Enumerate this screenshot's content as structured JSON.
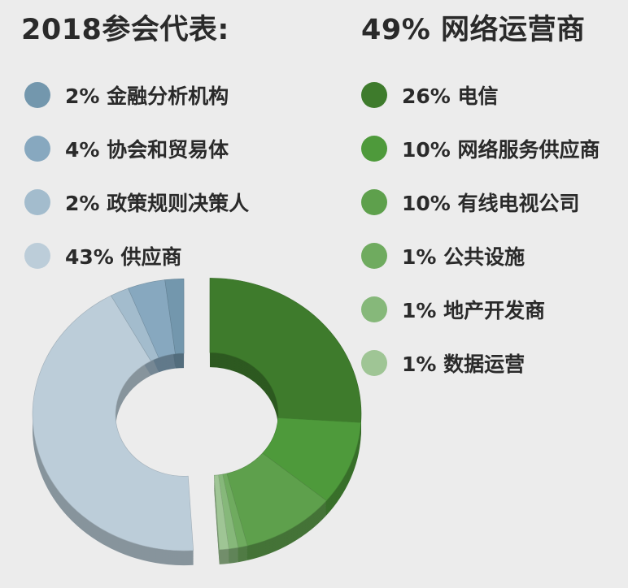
{
  "chart_data": {
    "type": "pie",
    "variant": "3d-donut-exploded",
    "groups": [
      {
        "title": "2018参会代表:",
        "items": [
          {
            "label": "2% 金融分析机构",
            "value": 2,
            "color": "#7397ad"
          },
          {
            "label": "4% 协会和贸易体",
            "value": 4,
            "color": "#87a8bf"
          },
          {
            "label": "2% 政策规则决策人",
            "value": 2,
            "color": "#a3bccd"
          },
          {
            "label": "43% 供应商",
            "value": 43,
            "color": "#bccdd9"
          }
        ]
      },
      {
        "title": "49% 网络运营商",
        "items": [
          {
            "label": "26% 电信",
            "value": 26,
            "color": "#3e7b2c"
          },
          {
            "label": "10% 网络服务供应商",
            "value": 10,
            "color": "#4e9a3b"
          },
          {
            "label": "10% 有线电视公司",
            "value": 10,
            "color": "#5ea04c"
          },
          {
            "label": "1% 公共设施",
            "value": 1,
            "color": "#6fab5f"
          },
          {
            "label": "1% 地产开发商",
            "value": 1,
            "color": "#86b87a"
          },
          {
            "label": "1% 数据运营",
            "value": 1,
            "color": "#9fc595"
          }
        ]
      }
    ]
  }
}
